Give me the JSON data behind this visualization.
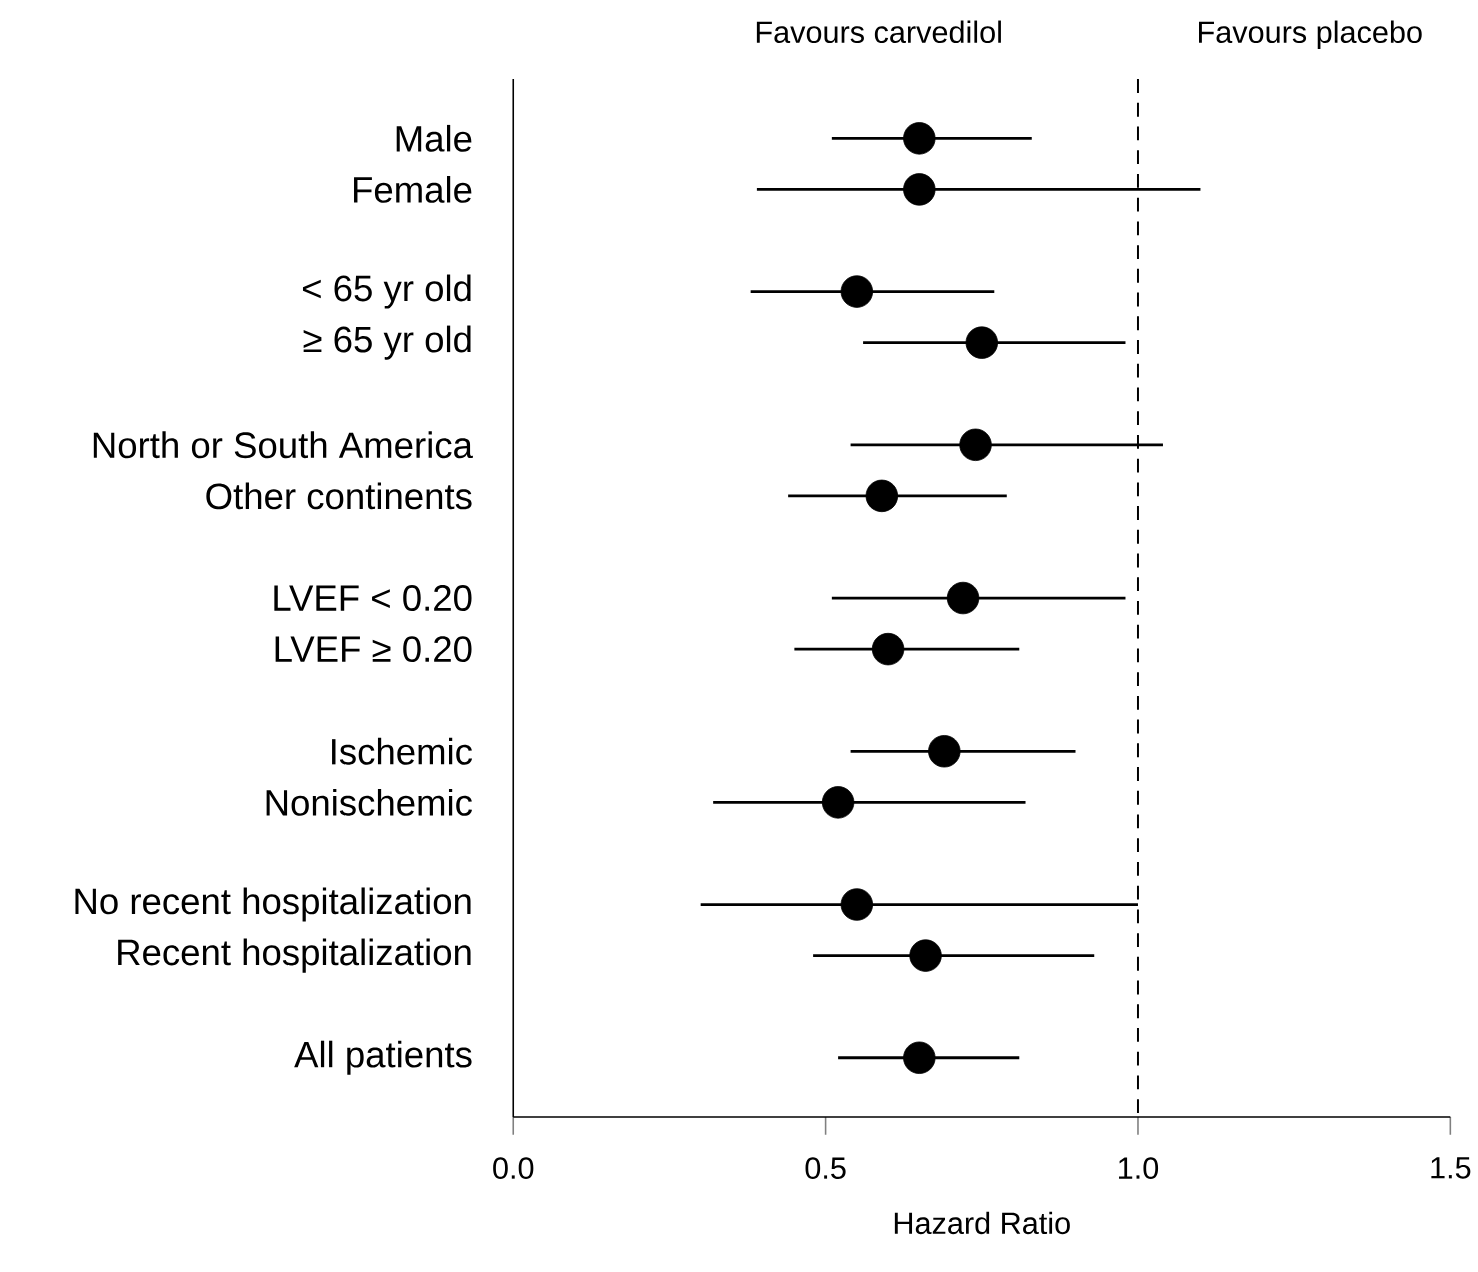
{
  "chart_data": {
    "type": "scatter",
    "orientation": "horizontal",
    "marker": "circle",
    "color": "#000000",
    "categories": [
      "Male",
      "Female",
      null,
      "< 65 yr old",
      "≥ 65 yr old",
      null,
      "North or South America",
      "Other continents",
      null,
      "LVEF < 0.20",
      "LVEF ≥ 0.20",
      null,
      "Ischemic",
      "Nonischemic",
      null,
      "No recent hospitalization",
      "Recent hospitalization",
      null,
      "All patients"
    ],
    "values": [
      0.65,
      0.65,
      null,
      0.55,
      0.75,
      null,
      0.74,
      0.59,
      null,
      0.72,
      0.6,
      null,
      0.69,
      0.52,
      null,
      0.55,
      0.66,
      null,
      0.65
    ],
    "errors": [
      [
        0.51,
        0.83
      ],
      [
        0.39,
        1.1
      ],
      null,
      [
        0.38,
        0.77
      ],
      [
        0.56,
        0.98
      ],
      null,
      [
        0.54,
        1.04
      ],
      [
        0.44,
        0.79
      ],
      null,
      [
        0.51,
        0.98
      ],
      [
        0.45,
        0.81
      ],
      null,
      [
        0.54,
        0.9
      ],
      [
        0.32,
        0.82
      ],
      null,
      [
        0.3,
        1.0
      ],
      [
        0.48,
        0.93
      ],
      null,
      [
        0.52,
        0.81
      ]
    ],
    "xlabel": "Hazard Ratio",
    "xlim": [
      0,
      1.5
    ],
    "xticks": [
      {
        "value": 0,
        "label": "0.0"
      },
      {
        "value": 0.5,
        "label": "0.5"
      },
      {
        "value": 1,
        "label": "1.0"
      },
      {
        "value": 1.5,
        "label": "1.5"
      }
    ],
    "ref_lines": [
      {
        "axis": "x",
        "value": 1,
        "color": "#000000",
        "line_style": "dashed"
      }
    ],
    "annotations": [
      "Favours carvedilol",
      "Favours placebo"
    ]
  }
}
